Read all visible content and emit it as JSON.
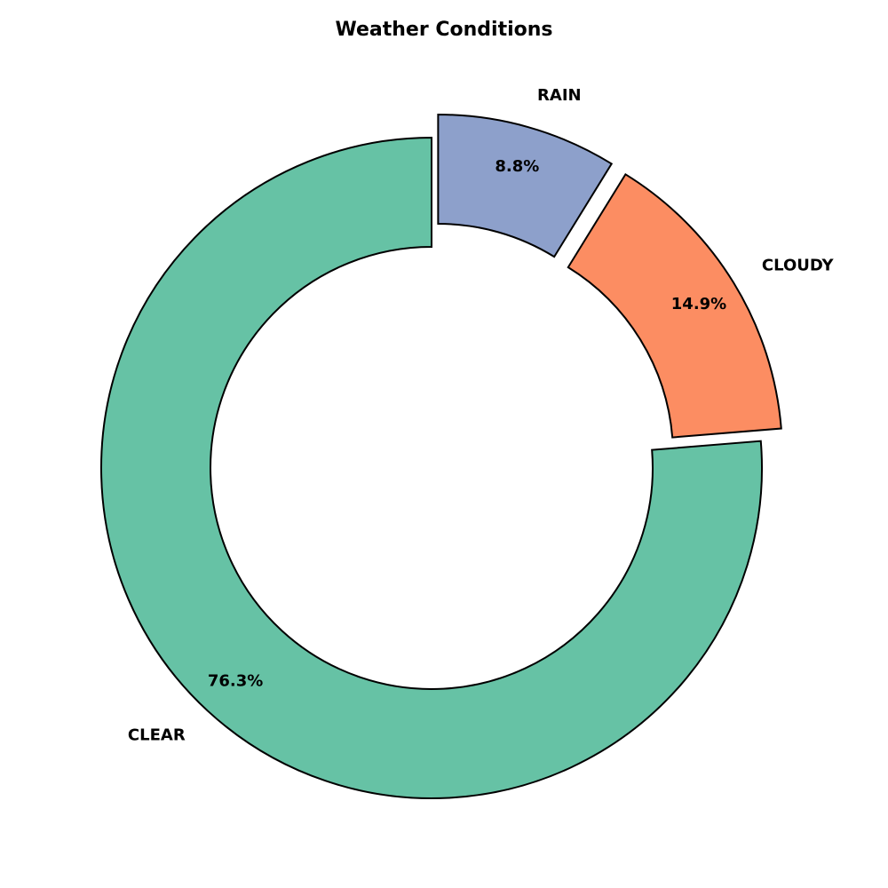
{
  "chart_data": {
    "type": "pie",
    "variant": "donut",
    "title": "Weather Conditions",
    "slices": [
      {
        "label": "CLEAR",
        "value": 76.3,
        "value_label": "76.3%",
        "color": "#66c2a5",
        "exploded": false
      },
      {
        "label": "CLOUDY",
        "value": 14.9,
        "value_label": "14.9%",
        "color": "#fc8d62",
        "exploded": true
      },
      {
        "label": "RAIN",
        "value": 8.8,
        "value_label": "8.8%",
        "color": "#8da0cb",
        "exploded": true
      }
    ],
    "start_angle_deg": 90,
    "direction": "counterclockwise",
    "edge_color": "#000000",
    "legend": "none"
  }
}
